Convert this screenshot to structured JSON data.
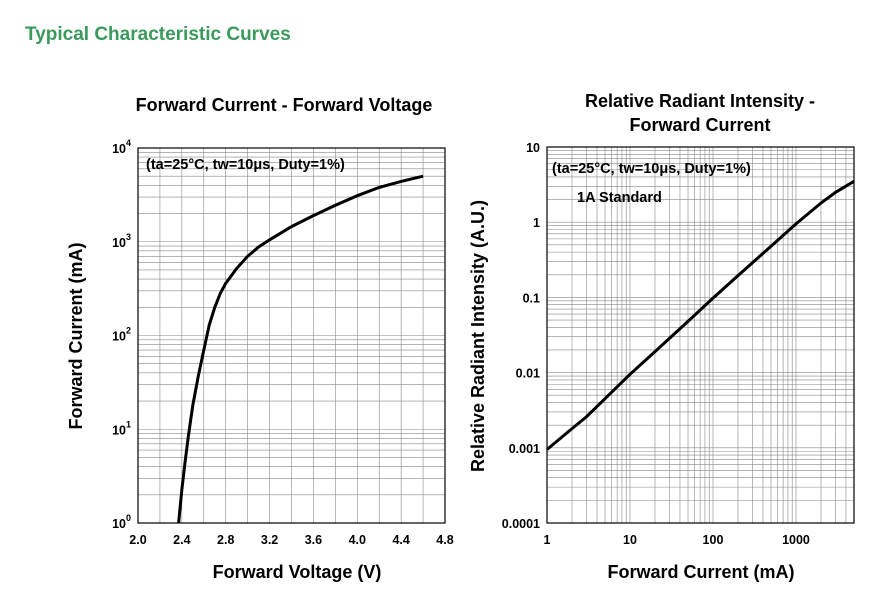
{
  "section_title": "Typical Characteristic Curves",
  "chart_data": [
    {
      "type": "line",
      "title": "Forward Current - Forward Voltage",
      "xlabel": "Forward Voltage (V)",
      "ylabel": "Forward Current (mA)",
      "annotation": "(ta=25°C, tw=10μs, Duty=1%)",
      "xlim": [
        2.0,
        4.8
      ],
      "ylim": [
        1,
        10000
      ],
      "yscale": "log",
      "grid": true,
      "x_ticks": [
        "2.0",
        "2.4",
        "2.8",
        "3.2",
        "3.6",
        "4.0",
        "4.4",
        "4.8"
      ],
      "y_ticks": [
        {
          "base": "10",
          "exp": "0"
        },
        {
          "base": "10",
          "exp": "1"
        },
        {
          "base": "10",
          "exp": "2"
        },
        {
          "base": "10",
          "exp": "3"
        },
        {
          "base": "10",
          "exp": "4"
        }
      ],
      "series": [
        {
          "x": [
            2.37,
            2.4,
            2.43,
            2.46,
            2.5,
            2.55,
            2.6,
            2.65,
            2.7,
            2.75,
            2.8,
            2.9,
            3.0,
            3.1,
            3.2,
            3.4,
            3.6,
            3.8,
            4.0,
            4.2,
            4.4,
            4.6
          ],
          "y": [
            1.0,
            2.3,
            4.5,
            8.5,
            18,
            37,
            70,
            130,
            200,
            280,
            360,
            520,
            700,
            880,
            1050,
            1450,
            1900,
            2450,
            3100,
            3800,
            4400,
            5000
          ]
        }
      ]
    },
    {
      "type": "line",
      "title": "Relative Radiant Intensity - Forward Current",
      "xlabel": "Forward Current (mA)",
      "ylabel": "Relative Radiant Intensity (A.U.)",
      "annotation": "(ta=25°C, tw=10μs, Duty=1%)",
      "annotation2": "1A Standard",
      "xlim": [
        1,
        5000
      ],
      "ylim": [
        0.0001,
        10
      ],
      "xscale": "log",
      "yscale": "log",
      "grid": true,
      "x_ticks": [
        "1",
        "10",
        "100",
        "1000"
      ],
      "y_ticks": [
        "0.0001",
        "0.001",
        "0.01",
        "0.1",
        "1",
        "10"
      ],
      "series": [
        {
          "x": [
            1,
            2,
            3,
            5,
            10,
            20,
            50,
            100,
            200,
            500,
            1000,
            2000,
            3000,
            5000
          ],
          "y": [
            0.00095,
            0.0018,
            0.0026,
            0.0045,
            0.0095,
            0.019,
            0.048,
            0.098,
            0.195,
            0.48,
            0.95,
            1.8,
            2.5,
            3.5
          ]
        }
      ]
    }
  ]
}
